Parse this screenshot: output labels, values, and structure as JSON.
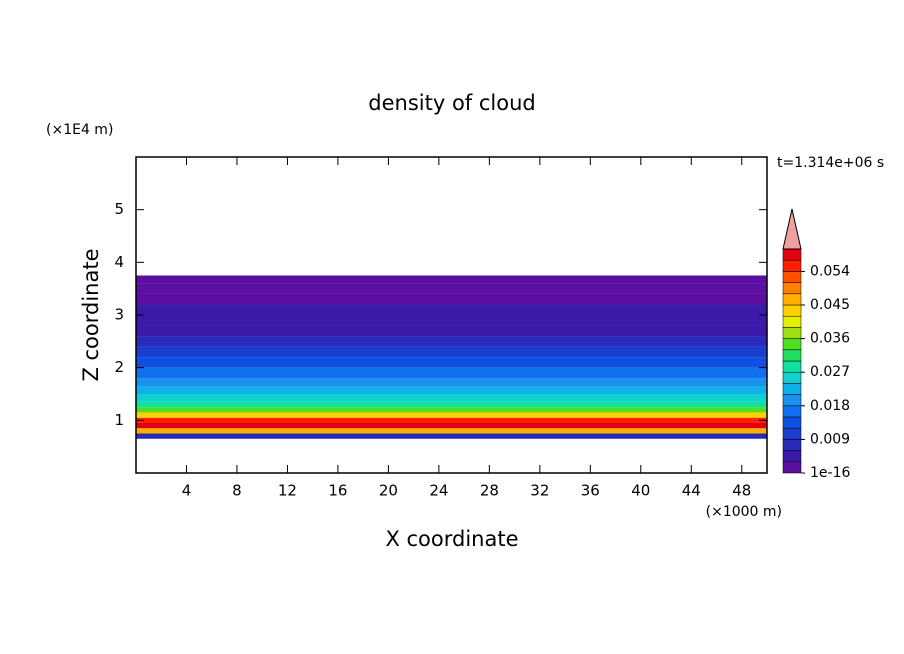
{
  "chart_data": {
    "type": "contour",
    "title": "density of cloud",
    "x_label": "X coordinate",
    "y_label": "Z coordinate",
    "x_unit": "(×1000 m)",
    "y_unit": "(×1E4 m)",
    "annotation": "t=1.314e+06 s",
    "xlim": [
      0,
      50
    ],
    "ylim": [
      0,
      6
    ],
    "xticks": [
      4,
      8,
      12,
      16,
      20,
      24,
      28,
      32,
      36,
      40,
      44,
      48
    ],
    "yticks": [
      1,
      2,
      3,
      4,
      5
    ],
    "z": [
      0.65,
      0.75,
      0.85,
      0.95,
      1.05,
      1.15,
      1.25,
      1.35,
      1.5,
      1.65,
      1.8,
      2.0,
      2.2,
      2.4,
      2.6,
      2.8,
      3.0,
      3.2,
      3.4,
      3.6,
      3.75
    ],
    "values": [
      0.006,
      0.045,
      0.057,
      0.054,
      0.042,
      0.033,
      0.027,
      0.024,
      0.021,
      0.018,
      0.015,
      0.012,
      0.009,
      0.007,
      0.005,
      0.004,
      0.003,
      0.002,
      0.002,
      0.001
    ],
    "levels": [
      1e-16,
      0.003,
      0.006,
      0.009,
      0.012,
      0.015,
      0.018,
      0.021,
      0.024,
      0.027,
      0.03,
      0.033,
      0.036,
      0.039,
      0.042,
      0.045,
      0.048,
      0.051,
      0.054,
      0.057,
      0.06
    ],
    "colors": [
      "#5a0fa0",
      "#3a1aa8",
      "#2a2ab8",
      "#1a3ed0",
      "#1050e0",
      "#1070f0",
      "#1a90f0",
      "#10b0e8",
      "#10d0d0",
      "#10e0a0",
      "#20e060",
      "#50e020",
      "#a0e010",
      "#e0f000",
      "#ffd000",
      "#ffb000",
      "#ff8000",
      "#ff5000",
      "#ff2000",
      "#e00010"
    ],
    "extend_color": "#f0a0a0",
    "colorbar_ticks": [
      {
        "value": 1e-16,
        "label": "1e-16"
      },
      0.009,
      0.018,
      0.027,
      0.036,
      0.045,
      0.054
    ]
  }
}
